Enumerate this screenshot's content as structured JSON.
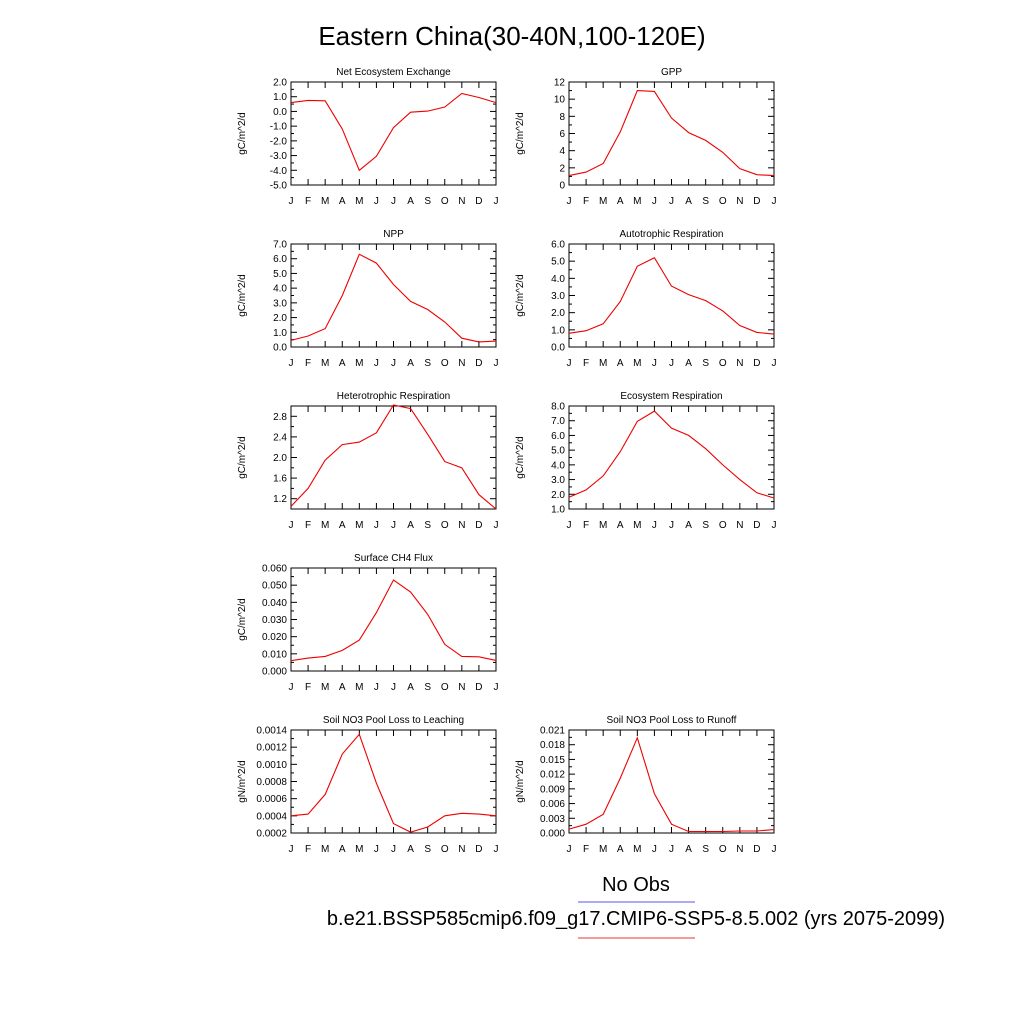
{
  "main_title": "Eastern China(30-40N,100-120E)",
  "legend": {
    "obs_label": "No Obs",
    "obs_color": "#5555ee",
    "model_label": "b.e21.BSSP585cmip6.f09_g17.CMIP6-SSP5-8.5.002 (yrs 2075-2099)",
    "model_color": "#ee3333"
  },
  "chart_data": [
    {
      "type": "line",
      "title": "Net Ecosystem Exchange",
      "ylabel": "gC/m^2/d",
      "categories": [
        "J",
        "F",
        "M",
        "A",
        "M",
        "J",
        "J",
        "A",
        "S",
        "O",
        "N",
        "D",
        "J"
      ],
      "ylim": [
        -5.0,
        2.0
      ],
      "yticks": [
        "-5.0",
        "-4.0",
        "-3.0",
        "-2.0",
        "-1.0",
        "0.0",
        "1.0",
        "2.0"
      ],
      "values": [
        0.6,
        0.75,
        0.72,
        -1.2,
        -4.0,
        -3.05,
        -1.1,
        -0.05,
        0.02,
        0.3,
        1.22,
        0.95,
        0.6
      ],
      "color": "#ee0000"
    },
    {
      "type": "line",
      "title": "GPP",
      "ylabel": "gC/m^2/d",
      "categories": [
        "J",
        "F",
        "M",
        "A",
        "M",
        "J",
        "J",
        "A",
        "S",
        "O",
        "N",
        "D",
        "J"
      ],
      "ylim": [
        0,
        12
      ],
      "yticks": [
        "0",
        "2",
        "4",
        "6",
        "8",
        "10",
        "12"
      ],
      "values": [
        1.1,
        1.5,
        2.5,
        6.2,
        11.0,
        10.9,
        7.8,
        6.1,
        5.2,
        3.8,
        1.9,
        1.2,
        1.1
      ],
      "color": "#ee0000"
    },
    {
      "type": "line",
      "title": "NPP",
      "ylabel": "gC/m^2/d",
      "categories": [
        "J",
        "F",
        "M",
        "A",
        "M",
        "J",
        "J",
        "A",
        "S",
        "O",
        "N",
        "D",
        "J"
      ],
      "ylim": [
        0.0,
        7.0
      ],
      "yticks": [
        "0.0",
        "1.0",
        "2.0",
        "3.0",
        "4.0",
        "5.0",
        "6.0",
        "7.0"
      ],
      "values": [
        0.45,
        0.75,
        1.25,
        3.5,
        6.3,
        5.7,
        4.25,
        3.1,
        2.55,
        1.7,
        0.6,
        0.35,
        0.4
      ],
      "color": "#ee0000"
    },
    {
      "type": "line",
      "title": "Autotrophic Respiration",
      "ylabel": "gC/m^2/d",
      "categories": [
        "J",
        "F",
        "M",
        "A",
        "M",
        "J",
        "J",
        "A",
        "S",
        "O",
        "N",
        "D",
        "J"
      ],
      "ylim": [
        0.0,
        6.0
      ],
      "yticks": [
        "0.0",
        "1.0",
        "2.0",
        "3.0",
        "4.0",
        "5.0",
        "6.0"
      ],
      "values": [
        0.8,
        0.95,
        1.35,
        2.65,
        4.7,
        5.2,
        3.55,
        3.05,
        2.7,
        2.1,
        1.25,
        0.85,
        0.75
      ],
      "color": "#ee0000"
    },
    {
      "type": "line",
      "title": "Heterotrophic Respiration",
      "ylabel": "gC/m^2/d",
      "categories": [
        "J",
        "F",
        "M",
        "A",
        "M",
        "J",
        "J",
        "A",
        "S",
        "O",
        "N",
        "D",
        "J"
      ],
      "ylim": [
        1.0,
        3.0
      ],
      "yticks": [
        "1.2",
        "1.6",
        "2.0",
        "2.4",
        "2.8"
      ],
      "ytick_values": [
        1.2,
        1.6,
        2.0,
        2.4,
        2.8
      ],
      "values": [
        1.05,
        1.4,
        1.95,
        2.25,
        2.3,
        2.48,
        3.02,
        2.95,
        2.45,
        1.92,
        1.8,
        1.28,
        1.0
      ],
      "color": "#ee0000"
    },
    {
      "type": "line",
      "title": "Ecosystem Respiration",
      "ylabel": "gC/m^2/d",
      "categories": [
        "J",
        "F",
        "M",
        "A",
        "M",
        "J",
        "J",
        "A",
        "S",
        "O",
        "N",
        "D",
        "J"
      ],
      "ylim": [
        1.0,
        8.0
      ],
      "yticks": [
        "1.0",
        "2.0",
        "3.0",
        "4.0",
        "5.0",
        "6.0",
        "7.0",
        "8.0"
      ],
      "values": [
        1.8,
        2.3,
        3.25,
        4.9,
        6.95,
        7.65,
        6.5,
        6.0,
        5.1,
        4.0,
        3.0,
        2.1,
        1.75
      ],
      "color": "#ee0000"
    },
    {
      "type": "line",
      "title": "Surface CH4 Flux",
      "ylabel": "gC/m^2/d",
      "categories": [
        "J",
        "F",
        "M",
        "A",
        "M",
        "J",
        "J",
        "A",
        "S",
        "O",
        "N",
        "D",
        "J"
      ],
      "ylim": [
        0.0,
        0.06
      ],
      "yticks": [
        "0.000",
        "0.010",
        "0.020",
        "0.030",
        "0.040",
        "0.050",
        "0.060"
      ],
      "values": [
        0.006,
        0.0075,
        0.0085,
        0.012,
        0.018,
        0.034,
        0.053,
        0.046,
        0.033,
        0.0155,
        0.0085,
        0.0083,
        0.0062
      ],
      "color": "#ee0000"
    },
    {
      "type": "line",
      "title": "Soil NO3 Pool Loss to Leaching",
      "ylabel": "gN/m^2/d",
      "categories": [
        "J",
        "F",
        "M",
        "A",
        "M",
        "J",
        "J",
        "A",
        "S",
        "O",
        "N",
        "D",
        "J"
      ],
      "ylim": [
        0.0002,
        0.0014
      ],
      "yticks": [
        "0.0002",
        "0.0004",
        "0.0006",
        "0.0008",
        "0.0010",
        "0.0012",
        "0.0014"
      ],
      "values": [
        0.0004,
        0.00042,
        0.00065,
        0.00112,
        0.00135,
        0.00078,
        0.00031,
        0.00021,
        0.00027,
        0.0004,
        0.00043,
        0.00042,
        0.0004
      ],
      "color": "#ee0000"
    },
    {
      "type": "line",
      "title": "Soil NO3 Pool Loss to Runoff",
      "ylabel": "gN/m^2/d",
      "categories": [
        "J",
        "F",
        "M",
        "A",
        "M",
        "J",
        "J",
        "A",
        "S",
        "O",
        "N",
        "D",
        "J"
      ],
      "ylim": [
        0.0,
        0.021
      ],
      "yticks": [
        "0.000",
        "0.003",
        "0.006",
        "0.009",
        "0.012",
        "0.015",
        "0.018",
        "0.021"
      ],
      "values": [
        0.0008,
        0.0018,
        0.0038,
        0.0112,
        0.0194,
        0.008,
        0.0018,
        0.0003,
        0.0003,
        0.0003,
        0.0004,
        0.0004,
        0.0007
      ],
      "color": "#ee0000"
    }
  ]
}
